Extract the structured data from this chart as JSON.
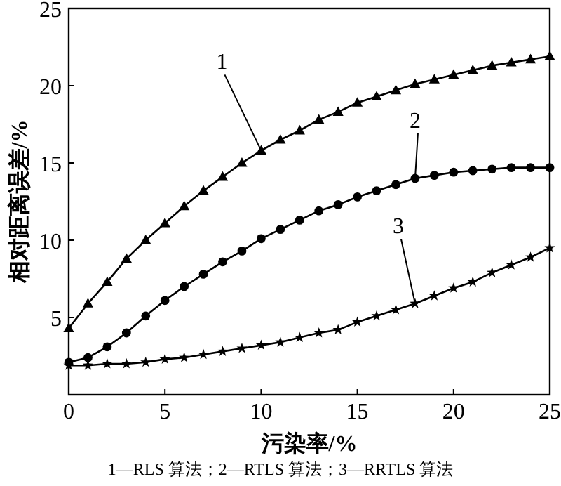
{
  "chart_data": {
    "type": "line",
    "xlabel": "污染率/%",
    "ylabel": "相对距离误差/%",
    "x": [
      0,
      1,
      2,
      3,
      4,
      5,
      6,
      7,
      8,
      9,
      10,
      11,
      12,
      13,
      14,
      15,
      16,
      17,
      18,
      19,
      20,
      21,
      22,
      23,
      24,
      25
    ],
    "series": [
      {
        "name": "1",
        "color": "#000000",
        "marker": "triangle",
        "values": [
          4.3,
          5.9,
          7.3,
          8.8,
          10.0,
          11.1,
          12.2,
          13.2,
          14.1,
          15.0,
          15.8,
          16.5,
          17.1,
          17.8,
          18.3,
          18.9,
          19.3,
          19.7,
          20.1,
          20.4,
          20.7,
          21.0,
          21.3,
          21.5,
          21.7,
          21.9
        ]
      },
      {
        "name": "2",
        "color": "#000000",
        "marker": "circle",
        "values": [
          2.1,
          2.4,
          3.1,
          4.0,
          5.1,
          6.1,
          7.0,
          7.8,
          8.6,
          9.3,
          10.1,
          10.7,
          11.3,
          11.9,
          12.3,
          12.8,
          13.2,
          13.6,
          14.0,
          14.2,
          14.4,
          14.5,
          14.6,
          14.7,
          14.7,
          14.7
        ]
      },
      {
        "name": "3",
        "color": "#000000",
        "marker": "star",
        "values": [
          1.9,
          1.9,
          2.0,
          2.0,
          2.1,
          2.3,
          2.4,
          2.6,
          2.8,
          3.0,
          3.2,
          3.4,
          3.7,
          4.0,
          4.2,
          4.7,
          5.1,
          5.5,
          5.9,
          6.4,
          6.9,
          7.3,
          7.9,
          8.4,
          8.9,
          9.5
        ]
      }
    ],
    "xlim": [
      0,
      25
    ],
    "ylim": [
      0,
      25
    ],
    "xticks": [
      0,
      5,
      10,
      15,
      20,
      25
    ],
    "yticks": [
      5,
      10,
      15,
      20,
      25
    ],
    "grid": false,
    "line_style": "solid",
    "annotations": [
      "1—RLS 算法；2—RTLS 算法；3—RRTLS 算法"
    ]
  }
}
